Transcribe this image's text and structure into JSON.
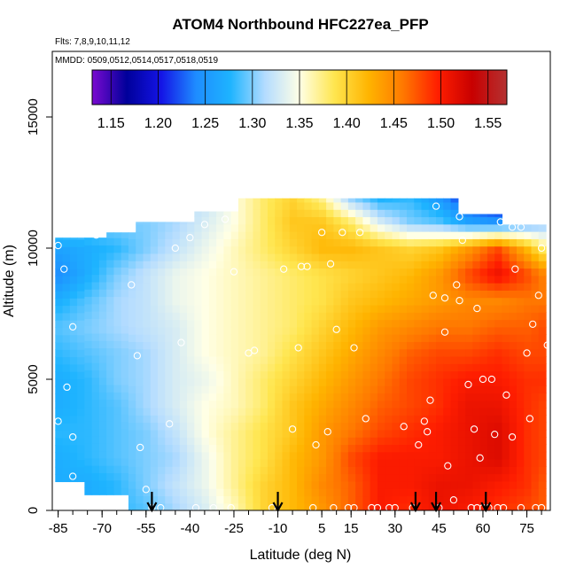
{
  "chart_data": {
    "type": "heatmap",
    "title": "ATOM4 Northbound HFC227ea_PFP",
    "subtitle_flights": "Flts: 7,8,9,10,11,12",
    "subtitle_dates": "MMDD: 0509,0512,0514,0517,0518,0519",
    "xlabel": "Latitude (deg N)",
    "ylabel": "Altitude (m)",
    "xlim": [
      -87,
      83
    ],
    "ylim": [
      0,
      17500
    ],
    "x_ticks": [
      -85,
      -70,
      -55,
      -40,
      -25,
      -10,
      5,
      15,
      30,
      45,
      60,
      75
    ],
    "x_tick_labels": [
      "-85",
      "-70",
      "-55",
      "-40",
      "-25",
      "-10",
      "5",
      "15",
      "30",
      "45",
      "60",
      "75"
    ],
    "y_ticks": [
      0,
      5000,
      10000,
      15000
    ],
    "y_tick_labels": [
      "0",
      "5000",
      "10000",
      "15000"
    ],
    "colorbar": {
      "min": 1.13,
      "max": 1.57,
      "ticks": [
        1.15,
        1.2,
        1.25,
        1.3,
        1.35,
        1.4,
        1.45,
        1.5,
        1.55
      ],
      "tick_labels": [
        "1.15",
        "1.20",
        "1.25",
        "1.30",
        "1.35",
        "1.40",
        "1.45",
        "1.50",
        "1.55"
      ],
      "colors": [
        "#7a0ad0",
        "#00009a",
        "#1414e6",
        "#1e8cff",
        "#1eb4ff",
        "#b4dcff",
        "#ffffe6",
        "#ffe650",
        "#ffb400",
        "#ff7800",
        "#ff1e00",
        "#c80000",
        "#b43232"
      ]
    },
    "field": {
      "lat_grid": [
        -86,
        -75,
        -65,
        -55,
        -45,
        -35,
        -25,
        -15,
        -5,
        5,
        15,
        25,
        35,
        45,
        55,
        65,
        75,
        82
      ],
      "alt_grid": [
        0,
        1000,
        2000,
        3000,
        4000,
        5000,
        6000,
        7000,
        8000,
        9000,
        10000,
        11000,
        12000
      ],
      "values": [
        [
          1.26,
          1.27,
          1.28,
          1.29,
          1.31,
          1.33,
          1.36,
          1.4,
          1.42,
          1.44,
          1.47,
          1.5,
          1.49,
          1.51,
          1.5,
          1.49,
          1.48,
          1.47
        ],
        [
          1.27,
          1.27,
          1.28,
          1.3,
          1.32,
          1.34,
          1.37,
          1.4,
          1.42,
          1.45,
          1.47,
          1.5,
          1.5,
          1.51,
          1.51,
          1.5,
          1.49,
          1.47
        ],
        [
          1.27,
          1.28,
          1.29,
          1.3,
          1.31,
          1.34,
          1.37,
          1.39,
          1.42,
          1.44,
          1.48,
          1.5,
          1.5,
          1.5,
          1.51,
          1.52,
          1.49,
          1.48
        ],
        [
          1.28,
          1.28,
          1.29,
          1.3,
          1.32,
          1.35,
          1.37,
          1.39,
          1.41,
          1.44,
          1.46,
          1.48,
          1.49,
          1.5,
          1.51,
          1.52,
          1.49,
          1.48
        ],
        [
          1.27,
          1.28,
          1.29,
          1.31,
          1.33,
          1.35,
          1.36,
          1.38,
          1.41,
          1.43,
          1.45,
          1.47,
          1.48,
          1.49,
          1.51,
          1.51,
          1.49,
          1.48
        ],
        [
          1.27,
          1.28,
          1.3,
          1.31,
          1.33,
          1.34,
          1.36,
          1.38,
          1.4,
          1.42,
          1.44,
          1.46,
          1.48,
          1.49,
          1.5,
          1.5,
          1.49,
          1.49
        ],
        [
          1.28,
          1.29,
          1.3,
          1.31,
          1.33,
          1.35,
          1.36,
          1.37,
          1.39,
          1.41,
          1.43,
          1.45,
          1.47,
          1.48,
          1.48,
          1.49,
          1.48,
          1.48
        ],
        [
          1.29,
          1.3,
          1.31,
          1.32,
          1.33,
          1.35,
          1.36,
          1.37,
          1.38,
          1.4,
          1.42,
          1.44,
          1.45,
          1.46,
          1.46,
          1.47,
          1.47,
          1.48
        ],
        [
          1.27,
          1.29,
          1.31,
          1.32,
          1.34,
          1.35,
          1.36,
          1.37,
          1.38,
          1.39,
          1.41,
          1.42,
          1.43,
          1.44,
          1.45,
          1.45,
          1.46,
          1.46
        ],
        [
          1.24,
          1.27,
          1.3,
          1.32,
          1.34,
          1.35,
          1.36,
          1.37,
          1.38,
          1.39,
          1.4,
          1.41,
          1.42,
          1.44,
          1.48,
          1.51,
          1.48,
          1.45
        ],
        [
          1.26,
          1.27,
          1.28,
          1.3,
          1.32,
          1.34,
          1.36,
          1.38,
          1.4,
          1.42,
          1.42,
          1.41,
          1.4,
          1.41,
          1.44,
          1.48,
          1.42,
          1.37
        ],
        [
          1.3,
          1.3,
          1.3,
          1.3,
          1.31,
          1.33,
          1.35,
          1.38,
          1.41,
          1.41,
          1.38,
          1.33,
          1.3,
          1.29,
          1.26,
          1.25,
          1.28,
          1.3
        ],
        [
          1.32,
          1.32,
          1.32,
          1.32,
          1.32,
          1.32,
          1.35,
          1.38,
          1.4,
          1.37,
          1.3,
          1.27,
          1.28,
          1.25,
          1.2,
          1.18,
          1.2,
          1.22
        ]
      ]
    },
    "sample_points": [
      [
        -85,
        10100
      ],
      [
        -83,
        9200
      ],
      [
        -80,
        7000
      ],
      [
        -82,
        4700
      ],
      [
        -80,
        2800
      ],
      [
        -80,
        1300
      ],
      [
        -85,
        3400
      ],
      [
        -72,
        10500
      ],
      [
        -60,
        8600
      ],
      [
        -58,
        5900
      ],
      [
        -57,
        2400
      ],
      [
        -55,
        800
      ],
      [
        -53,
        100
      ],
      [
        -50,
        100
      ],
      [
        -47,
        3300
      ],
      [
        -45,
        10000
      ],
      [
        -43,
        6400
      ],
      [
        -40,
        10400
      ],
      [
        -38,
        100
      ],
      [
        -35,
        10900
      ],
      [
        -32,
        100
      ],
      [
        -28,
        11100
      ],
      [
        -26,
        100
      ],
      [
        -25,
        9100
      ],
      [
        -20,
        6000
      ],
      [
        -18,
        6100
      ],
      [
        -12,
        100
      ],
      [
        -8,
        9200
      ],
      [
        -5,
        3100
      ],
      [
        -3,
        6200
      ],
      [
        -2,
        9300
      ],
      [
        0,
        9300
      ],
      [
        2,
        100
      ],
      [
        3,
        2500
      ],
      [
        5,
        10600
      ],
      [
        7,
        3000
      ],
      [
        8,
        9400
      ],
      [
        9,
        100
      ],
      [
        10,
        6900
      ],
      [
        12,
        10600
      ],
      [
        14,
        100
      ],
      [
        16,
        100
      ],
      [
        16,
        6200
      ],
      [
        18,
        10600
      ],
      [
        20,
        3500
      ],
      [
        22,
        100
      ],
      [
        24,
        100
      ],
      [
        28,
        100
      ],
      [
        30,
        100
      ],
      [
        33,
        3200
      ],
      [
        36,
        100
      ],
      [
        38,
        2500
      ],
      [
        40,
        3400
      ],
      [
        41,
        3000
      ],
      [
        42,
        4200
      ],
      [
        43,
        8200
      ],
      [
        44,
        11600
      ],
      [
        45,
        100
      ],
      [
        47,
        6800
      ],
      [
        47,
        8100
      ],
      [
        48,
        1700
      ],
      [
        50,
        400
      ],
      [
        51,
        8600
      ],
      [
        52,
        11200
      ],
      [
        52,
        8000
      ],
      [
        53,
        10300
      ],
      [
        55,
        4800
      ],
      [
        56,
        100
      ],
      [
        57,
        3100
      ],
      [
        58,
        100
      ],
      [
        58,
        7700
      ],
      [
        59,
        2000
      ],
      [
        60,
        100
      ],
      [
        60,
        5000
      ],
      [
        62,
        100
      ],
      [
        63,
        5000
      ],
      [
        64,
        2900
      ],
      [
        65,
        100
      ],
      [
        66,
        11000
      ],
      [
        67,
        100
      ],
      [
        68,
        4400
      ],
      [
        70,
        10800
      ],
      [
        70,
        2800
      ],
      [
        71,
        9200
      ],
      [
        73,
        100
      ],
      [
        73,
        10800
      ],
      [
        75,
        6000
      ],
      [
        76,
        3500
      ],
      [
        77,
        7100
      ],
      [
        78,
        100
      ],
      [
        79,
        8200
      ],
      [
        80,
        100
      ],
      [
        80,
        10000
      ],
      [
        82,
        6300
      ]
    ],
    "arrow_latitudes": [
      -53,
      -10,
      37,
      44,
      61
    ]
  }
}
